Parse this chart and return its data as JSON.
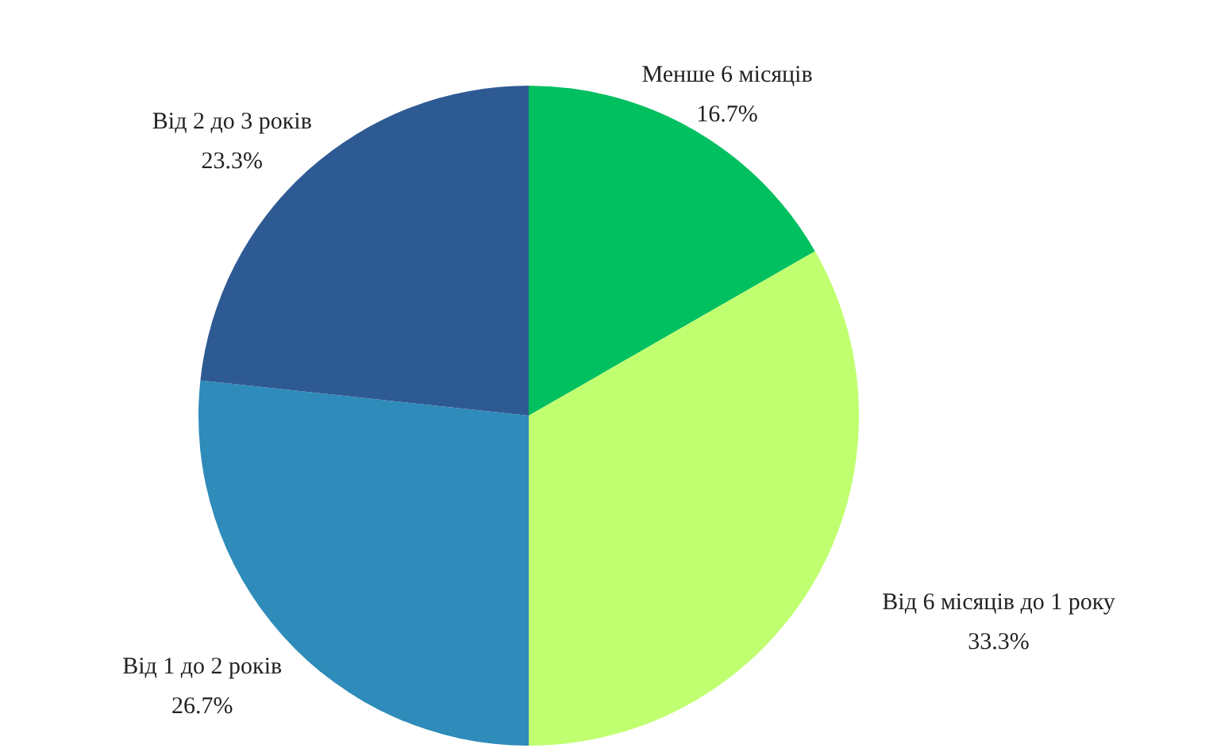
{
  "chart_data": {
    "type": "pie",
    "categories": [
      "Менше 6 місяців",
      "Від 6 місяців до 1 року",
      "Від 1 до 2 років",
      "Від 2 до 3 років"
    ],
    "values": [
      16.7,
      33.3,
      26.7,
      23.3
    ],
    "value_labels": [
      "16.7%",
      "33.3%",
      "26.7%",
      "23.3%"
    ],
    "colors": [
      "#00c060",
      "#c0ff70",
      "#2e8bba",
      "#2e5a94"
    ]
  }
}
